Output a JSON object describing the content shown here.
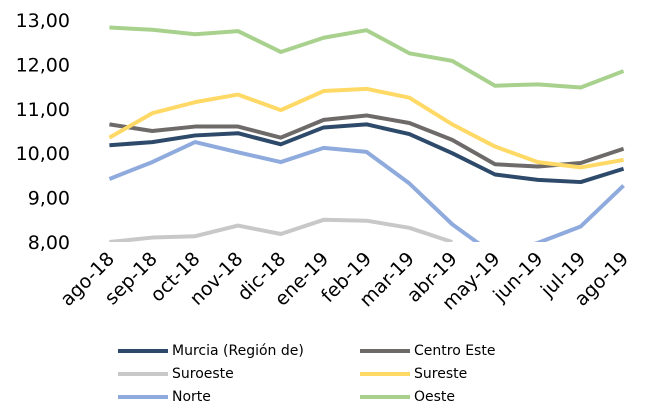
{
  "chart_data": {
    "type": "line",
    "categories": [
      "ago-18",
      "sep-18",
      "oct-18",
      "nov-18",
      "dic-18",
      "ene-19",
      "feb-19",
      "mar-19",
      "abr-19",
      "may-19",
      "jun-19",
      "jul-19",
      "ago-19"
    ],
    "series": [
      {
        "name": "Murcia (Región de)",
        "color": "#2e4a6b",
        "values": [
          10.18,
          10.25,
          10.4,
          10.45,
          10.2,
          10.58,
          10.65,
          10.43,
          10.0,
          9.52,
          9.4,
          9.35,
          9.65
        ]
      },
      {
        "name": "Centro Este",
        "color": "#6e6a6a",
        "values": [
          10.65,
          10.5,
          10.6,
          10.6,
          10.35,
          10.75,
          10.85,
          10.68,
          10.3,
          9.75,
          9.7,
          9.78,
          10.1
        ]
      },
      {
        "name": "Suroeste",
        "color": "#c8c8c8",
        "values": [
          8.0,
          8.1,
          8.13,
          8.37,
          8.18,
          8.5,
          8.48,
          8.32,
          8.0,
          null,
          null,
          null,
          null
        ]
      },
      {
        "name": "Sureste",
        "color": "#ffd966",
        "values": [
          10.35,
          10.9,
          11.15,
          11.32,
          10.97,
          11.4,
          11.45,
          11.25,
          10.65,
          10.15,
          9.8,
          9.68,
          9.85
        ]
      },
      {
        "name": "Norte",
        "color": "#8faadc",
        "values": [
          9.42,
          9.8,
          10.25,
          10.02,
          9.8,
          10.12,
          10.03,
          9.32,
          8.4,
          7.7,
          7.98,
          8.35,
          9.27
        ]
      },
      {
        "name": "Oeste",
        "color": "#a9d18e",
        "values": [
          12.83,
          12.78,
          12.68,
          12.75,
          12.28,
          12.6,
          12.77,
          12.25,
          12.08,
          11.52,
          11.55,
          11.48,
          11.85
        ]
      }
    ],
    "ylim": [
      8,
      13
    ],
    "yticks": [
      {
        "value": 8,
        "label": "8,00"
      },
      {
        "value": 9,
        "label": "9,00"
      },
      {
        "value": 10,
        "label": "10,00"
      },
      {
        "value": 11,
        "label": "11,00"
      },
      {
        "value": 12,
        "label": "12,00"
      },
      {
        "value": 13,
        "label": "13,00"
      }
    ],
    "grid": false
  }
}
